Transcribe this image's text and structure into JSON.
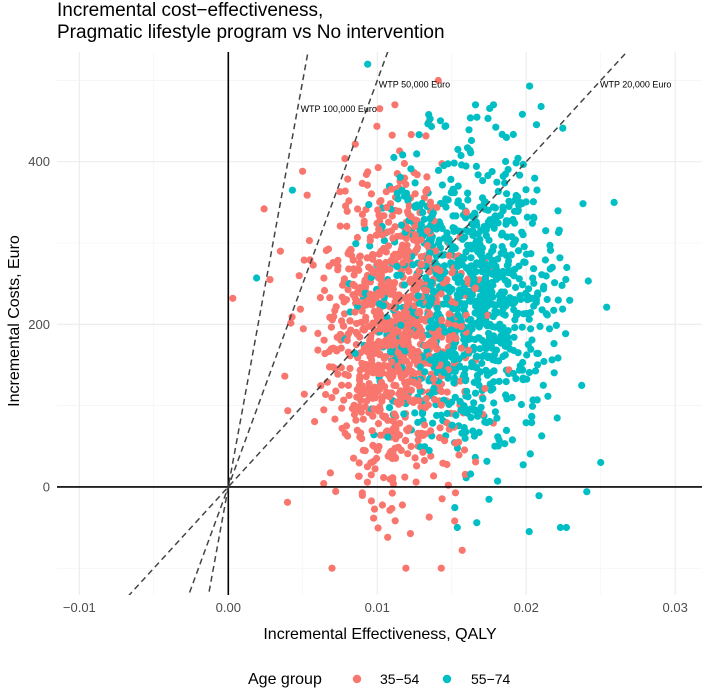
{
  "chart_data": {
    "type": "scatter",
    "title": "Incremental cost−effectiveness,",
    "subtitle": "Pragmatic lifestyle program vs No intervention",
    "xlabel": "Incremental Effectiveness, QALY",
    "ylabel": "Incremental Costs, Euro",
    "xlim": [
      -0.0115,
      0.0318
    ],
    "ylim": [
      -133,
      535
    ],
    "x_ticks": [
      -0.01,
      0.0,
      0.01,
      0.02,
      0.03
    ],
    "x_tick_labels": [
      "−0.01",
      "0.00",
      "0.01",
      "0.02",
      "0.03"
    ],
    "y_ticks": [
      0,
      200,
      400
    ],
    "y_tick_labels": [
      "0",
      "200",
      "400"
    ],
    "grid": true,
    "legend": {
      "title": "Age group",
      "position": "bottom",
      "entries": [
        {
          "label": "35−54",
          "color": "#F8766D"
        },
        {
          "label": "55−74",
          "color": "#00BFC4"
        }
      ]
    },
    "series": [
      {
        "name": "35−54",
        "color": "#F8766D",
        "n_points": 1000,
        "x_mean": 0.0112,
        "x_sd": 0.0024,
        "y_mean": 185,
        "y_sd": 95,
        "notable_points": [
          [
            0.0003,
            232
          ],
          [
            0.0024,
            342
          ],
          [
            0.0035,
            290
          ],
          [
            0.0028,
            255
          ],
          [
            0.0141,
            500
          ],
          [
            0.0143,
            -100
          ],
          [
            0.0157,
            -78
          ],
          [
            0.0152,
            -42
          ],
          [
            0.0107,
            -62
          ]
        ]
      },
      {
        "name": "55−74",
        "color": "#00BFC4",
        "n_points": 1000,
        "x_mean": 0.0161,
        "x_sd": 0.0028,
        "y_mean": 235,
        "y_sd": 95,
        "notable_points": [
          [
            0.0259,
            350
          ],
          [
            0.0254,
            221
          ],
          [
            0.025,
            30
          ],
          [
            0.0227,
            -50
          ],
          [
            0.0202,
            -55
          ],
          [
            0.0019,
            257
          ],
          [
            0.0043,
            365
          ],
          [
            0.0178,
            470
          ],
          [
            0.021,
            468
          ]
        ]
      }
    ],
    "reference_lines": [
      {
        "label": "WTP 20,000 Euro",
        "slope_euro_per_qaly": 20000
      },
      {
        "label": "WTP 50,000 Euro",
        "slope_euro_per_qaly": 50000
      },
      {
        "label": "WTP 100,000 Euro",
        "slope_euro_per_qaly": 100000
      }
    ]
  }
}
